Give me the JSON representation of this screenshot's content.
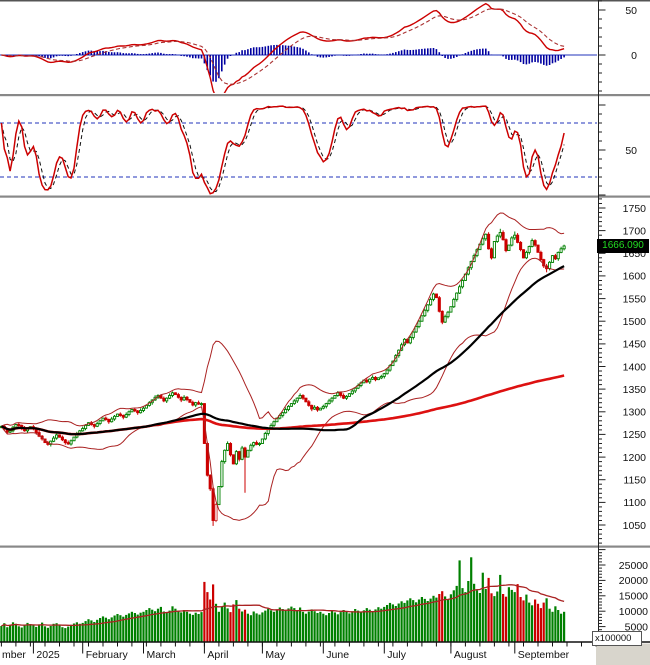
{
  "colors": {
    "background": "#ffffff",
    "candle_up": "#008000",
    "candle_down": "#cc0000",
    "hollow_stroke": "#cc3333",
    "macd_line": "#cc0000",
    "macd_signal": "#aa3333",
    "histogram": "#0000a0",
    "zero_line": "#2233bb",
    "stoch_k": "#cc0000",
    "stoch_d": "#111111",
    "level_line": "#2233bb",
    "bollinger": "#aa2222",
    "ma_fast_black": "#000000",
    "ma_slow_red": "#dd1111",
    "volume_up": "#008000",
    "volume_down": "#cc0000",
    "volume_ma": "#aa2222",
    "axis_line": "#222222",
    "separator": "#888888",
    "badge_bg": "#000000",
    "badge_text": "#22dd22",
    "corner_fill": "#d8d5cc",
    "label_text": "#111111"
  },
  "chart_data": [
    {
      "panel": "indicator-top",
      "type": "line+histogram",
      "name": "MACD(12,26,9)",
      "derived_from": "price.close",
      "params": {
        "fast": 12,
        "slow": 26,
        "signal": 9
      },
      "ylabels": [
        50,
        0
      ],
      "legend": [
        "macd-line (red solid)",
        "signal (dark-red dashed)",
        "histogram (blue bars)"
      ]
    },
    {
      "panel": "indicator-middle",
      "type": "line",
      "name": "Stochastic(14,3,3)",
      "derived_from": "price.ohlc",
      "params": {
        "k": 14,
        "k_smooth": 3,
        "d": 3
      },
      "levels": [
        80,
        20
      ],
      "ylabels": [
        50
      ],
      "legend": [
        "%K (red solid)",
        "%D (black dashed)"
      ]
    },
    {
      "panel": "price",
      "type": "candlestick",
      "ylim": [
        1050,
        1750
      ],
      "ylabels": [
        1750,
        1700,
        1650,
        1600,
        1550,
        1500,
        1450,
        1400,
        1350,
        1300,
        1250,
        1200,
        1150,
        1100,
        1050
      ],
      "last_price": 1666.09,
      "last_price_label": "1666.090",
      "overlays": [
        "BollingerBands(20,2)",
        "MA-fast (black)",
        "MA-slow (red)"
      ],
      "x_axis": {
        "partial_label": "mber",
        "months": [
          {
            "label": "2025",
            "bar": 11
          },
          {
            "label": "February",
            "bar": 28
          },
          {
            "label": "March",
            "bar": 49
          },
          {
            "label": "April",
            "bar": 70
          },
          {
            "label": "May",
            "bar": 90
          },
          {
            "label": "June",
            "bar": 111
          },
          {
            "label": "July",
            "bar": 132
          },
          {
            "label": "August",
            "bar": 155
          },
          {
            "label": "September",
            "bar": 177
          }
        ]
      },
      "close": [
        1268,
        1262,
        1255,
        1258,
        1266,
        1272,
        1270,
        1264,
        1258,
        1263,
        1267,
        1262,
        1254,
        1246,
        1240,
        1232,
        1228,
        1235,
        1242,
        1249,
        1244,
        1238,
        1232,
        1229,
        1236,
        1244,
        1252,
        1258,
        1263,
        1270,
        1276,
        1272,
        1268,
        1274,
        1280,
        1286,
        1283,
        1278,
        1284,
        1290,
        1295,
        1292,
        1288,
        1294,
        1300,
        1305,
        1302,
        1298,
        1303,
        1308,
        1314,
        1320,
        1326,
        1332,
        1336,
        1330,
        1324,
        1330,
        1336,
        1342,
        1338,
        1332,
        1326,
        1332,
        1327,
        1321,
        1315,
        1320,
        1317,
        1318,
        1230,
        1160,
        1130,
        1060,
        1095,
        1135,
        1190,
        1215,
        1230,
        1205,
        1185,
        1212,
        1195,
        1220,
        1200,
        1215,
        1226,
        1232,
        1228,
        1230,
        1240,
        1252,
        1262,
        1270,
        1278,
        1286,
        1292,
        1298,
        1305,
        1312,
        1318,
        1324,
        1330,
        1336,
        1330,
        1322,
        1314,
        1306,
        1310,
        1304,
        1308,
        1312,
        1318,
        1324,
        1330,
        1336,
        1342,
        1336,
        1330,
        1334,
        1340,
        1346,
        1352,
        1358,
        1364,
        1370,
        1366,
        1372,
        1376,
        1371,
        1375,
        1378,
        1384,
        1392,
        1402,
        1412,
        1424,
        1436,
        1448,
        1460,
        1452,
        1464,
        1476,
        1488,
        1500,
        1512,
        1524,
        1536,
        1548,
        1560,
        1552,
        1522,
        1498,
        1510,
        1520,
        1532,
        1548,
        1562,
        1576,
        1590,
        1604,
        1618,
        1632,
        1645,
        1658,
        1670,
        1682,
        1692,
        1660,
        1640,
        1676,
        1688,
        1696,
        1680,
        1656,
        1668,
        1684,
        1690,
        1674,
        1658,
        1640,
        1652,
        1665,
        1678,
        1668,
        1652,
        1636,
        1622,
        1616,
        1630,
        1645,
        1638,
        1652,
        1660,
        1666.09
      ],
      "low_overrides": {
        "73": 1048,
        "84": 1121,
        "188": 1608
      },
      "high_overrides": {
        "172": 1704,
        "177": 1698
      },
      "hollow_bars": [
        74
      ]
    },
    {
      "panel": "volume",
      "type": "bar",
      "scale_label": "x100000",
      "ylim": [
        0,
        30000
      ],
      "ylabels": [
        25000,
        20000,
        15000,
        10000,
        5000
      ],
      "overlay": "MA(20)",
      "values": [
        5200,
        6100,
        4800,
        5600,
        6400,
        5900,
        5100,
        4700,
        5500,
        6200,
        5800,
        5400,
        4900,
        5700,
        6300,
        5100,
        4600,
        5200,
        5900,
        6100,
        5400,
        4800,
        4500,
        5000,
        5600,
        6000,
        6400,
        5900,
        6200,
        6800,
        7400,
        7000,
        6500,
        7200,
        7800,
        8300,
        7900,
        7400,
        8000,
        8600,
        9100,
        8700,
        8200,
        8800,
        9300,
        9800,
        9400,
        8900,
        9500,
        9800,
        10400,
        11000,
        10500,
        10000,
        10800,
        11400,
        9900,
        9400,
        10200,
        11600,
        10800,
        10100,
        9600,
        10400,
        9800,
        9200,
        8800,
        9500,
        9100,
        9700,
        19500,
        16200,
        13800,
        18700,
        12400,
        9800,
        11500,
        12800,
        10900,
        9700,
        12200,
        13600,
        10800,
        9900,
        10500,
        9200,
        8700,
        9900,
        9300,
        8900,
        9600,
        10200,
        10800,
        10300,
        9800,
        10600,
        11200,
        10700,
        10100,
        10900,
        11500,
        11000,
        10400,
        11200,
        9800,
        9200,
        9900,
        10600,
        10000,
        9400,
        9800,
        9200,
        8700,
        9400,
        10100,
        9600,
        9000,
        9700,
        10400,
        9900,
        9300,
        10000,
        10700,
        10200,
        9600,
        10300,
        11000,
        10500,
        9900,
        10600,
        11300,
        10800,
        11400,
        12000,
        12700,
        12200,
        11700,
        12500,
        13200,
        12700,
        13500,
        14200,
        13600,
        12900,
        13800,
        14600,
        14000,
        13300,
        14100,
        15000,
        14400,
        15600,
        16500,
        14800,
        13900,
        15500,
        16800,
        18200,
        26500,
        17500,
        16200,
        19800,
        27500,
        18900,
        16800,
        15900,
        22500,
        17200,
        20800,
        15800,
        14900,
        16400,
        21800,
        15600,
        14700,
        17800,
        16900,
        16200,
        18800,
        14600,
        13500,
        15400,
        12800,
        11900,
        13800,
        12400,
        11000,
        12800,
        14200,
        10800,
        9800,
        11600,
        10400,
        9200,
        9800
      ]
    }
  ]
}
